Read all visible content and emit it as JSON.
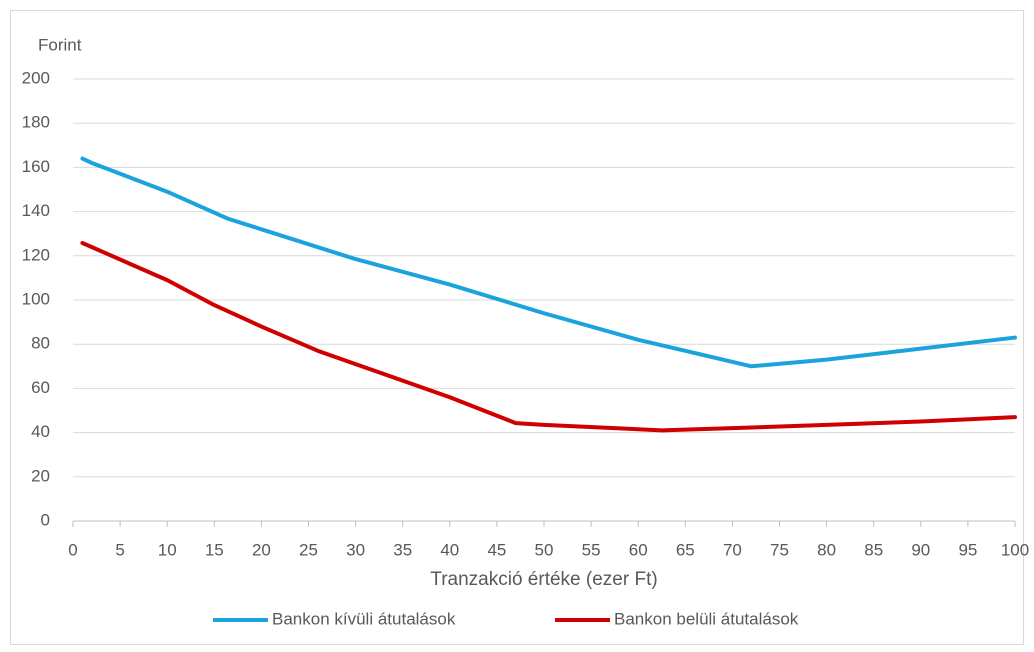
{
  "chart_data": {
    "type": "line",
    "y_label": "Forint",
    "x_label": "Tranzakció értéke (ezer Ft)",
    "xlim": [
      0,
      100
    ],
    "xticks": [
      0,
      5,
      10,
      15,
      20,
      25,
      30,
      35,
      40,
      45,
      50,
      55,
      60,
      65,
      70,
      75,
      80,
      85,
      90,
      95,
      100
    ],
    "ylim": [
      0,
      200
    ],
    "yticks": [
      0,
      20,
      40,
      60,
      80,
      100,
      120,
      140,
      160,
      180,
      200
    ],
    "grid": true,
    "legend": "bottom",
    "series": [
      {
        "name": "Bankon kívüli átutalások",
        "color": "#1aa3dc",
        "x": [
          1,
          2,
          10,
          16.5,
          20,
          30,
          40,
          50,
          60,
          65,
          72,
          80,
          90,
          100
        ],
        "values": [
          164,
          162,
          149,
          136.7,
          132,
          118.5,
          107,
          94,
          82,
          77,
          70,
          73,
          78,
          83
        ]
      },
      {
        "name": "Bankon belüli átutalások",
        "color": "#d00000",
        "x": [
          1,
          10,
          15,
          20,
          26,
          30,
          40,
          47,
          50,
          62.5,
          70,
          80,
          90,
          100
        ],
        "values": [
          125.8,
          109,
          97.7,
          88,
          77,
          71,
          56,
          44.3,
          43.5,
          41,
          42,
          43.5,
          45,
          47
        ]
      }
    ]
  }
}
